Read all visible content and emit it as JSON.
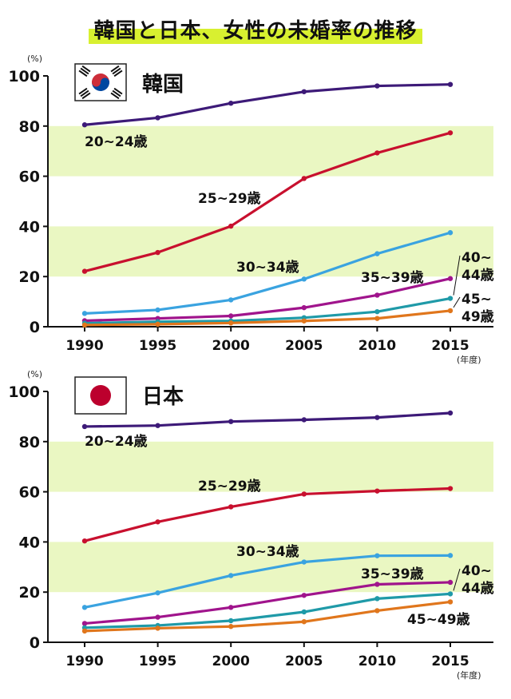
{
  "title": "韓国と日本、女性の未婚率の推移",
  "chart_data": [
    {
      "type": "line",
      "country": "韓国",
      "flag": "korea-flag",
      "y_unit": "(%)",
      "x_unit": "(年度)",
      "x": [
        "1990",
        "1995",
        "2000",
        "2005",
        "2010",
        "2015"
      ],
      "y_ticks": [
        "0",
        "20",
        "40",
        "60",
        "80",
        "100"
      ],
      "ylim": [
        0,
        100
      ],
      "bands": [
        [
          20,
          40
        ],
        [
          60,
          80
        ]
      ],
      "series": [
        {
          "name": "20~24歳",
          "label_lines": [
            "20~24歳"
          ],
          "color": "#3d1a78",
          "values": [
            80.5,
            83.3,
            89.1,
            93.7,
            96.0,
            96.6
          ]
        },
        {
          "name": "25~29歳",
          "label_lines": [
            "25~29歳"
          ],
          "color": "#c8102e",
          "values": [
            22.1,
            29.6,
            40.1,
            59.1,
            69.3,
            77.3
          ]
        },
        {
          "name": "30~34歳",
          "label_lines": [
            "30~34歳"
          ],
          "color": "#3aa3e0",
          "values": [
            5.3,
            6.7,
            10.7,
            19.0,
            29.1,
            37.5
          ]
        },
        {
          "name": "35~39歳",
          "label_lines": [
            "35~39歳"
          ],
          "color": "#a0148c",
          "values": [
            2.4,
            3.3,
            4.3,
            7.6,
            12.6,
            19.2
          ]
        },
        {
          "name": "40~44歳",
          "label_lines": [
            "40~",
            "44歳"
          ],
          "color": "#1f9aa8",
          "values": [
            1.4,
            2.0,
            2.3,
            3.6,
            6.0,
            11.3
          ]
        },
        {
          "name": "45~49歳",
          "label_lines": [
            "45~",
            "49歳"
          ],
          "color": "#e0761c",
          "values": [
            0.7,
            1.0,
            1.5,
            2.3,
            3.3,
            6.4
          ]
        }
      ]
    },
    {
      "type": "line",
      "country": "日本",
      "flag": "japan-flag",
      "y_unit": "(%)",
      "x_unit": "(年度)",
      "x": [
        "1990",
        "1995",
        "2000",
        "2005",
        "2010",
        "2015"
      ],
      "y_ticks": [
        "0",
        "20",
        "40",
        "60",
        "80",
        "100"
      ],
      "ylim": [
        0,
        100
      ],
      "bands": [
        [
          20,
          40
        ],
        [
          60,
          80
        ]
      ],
      "series": [
        {
          "name": "20~24歳",
          "label_lines": [
            "20~24歳"
          ],
          "color": "#3d1a78",
          "values": [
            86.0,
            86.4,
            88.0,
            88.7,
            89.6,
            91.4
          ]
        },
        {
          "name": "25~29歳",
          "label_lines": [
            "25~29歳"
          ],
          "color": "#c8102e",
          "values": [
            40.4,
            48.0,
            54.0,
            59.1,
            60.3,
            61.3
          ]
        },
        {
          "name": "30~34歳",
          "label_lines": [
            "30~34歳"
          ],
          "color": "#3aa3e0",
          "values": [
            13.9,
            19.7,
            26.6,
            32.0,
            34.5,
            34.6
          ]
        },
        {
          "name": "35~39歳",
          "label_lines": [
            "35~39歳"
          ],
          "color": "#a0148c",
          "values": [
            7.5,
            10.0,
            13.9,
            18.7,
            23.1,
            23.9
          ]
        },
        {
          "name": "40~44歳",
          "label_lines": [
            "40~",
            "44歳"
          ],
          "color": "#1f9aa8",
          "values": [
            5.8,
            6.7,
            8.6,
            12.1,
            17.4,
            19.3
          ]
        },
        {
          "name": "45~49歳",
          "label_lines": [
            "45~49歳"
          ],
          "color": "#e0761c",
          "values": [
            4.5,
            5.6,
            6.3,
            8.2,
            12.6,
            16.1
          ]
        }
      ]
    }
  ]
}
